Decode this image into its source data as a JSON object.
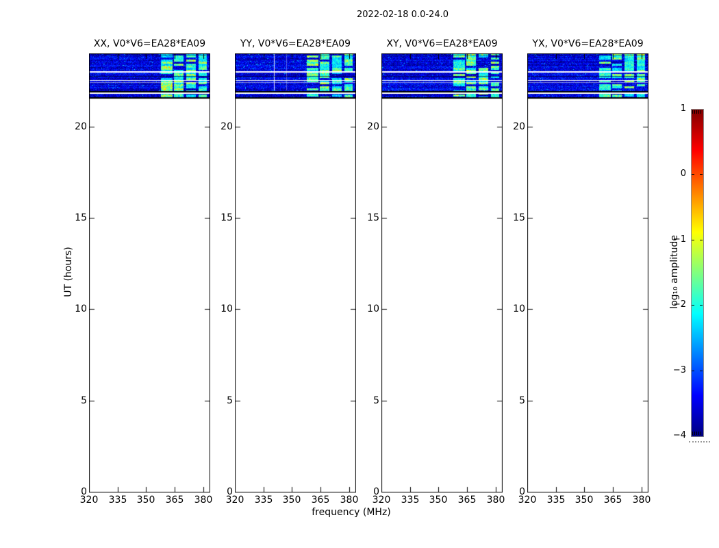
{
  "figure": {
    "title": "2022-02-18 0.0-24.0"
  },
  "axes": {
    "x_label": "frequency (MHz)",
    "y_label": "UT (hours)",
    "x_ticks": [
      320,
      335,
      350,
      365,
      380
    ],
    "y_ticks": [
      0,
      5,
      10,
      15,
      20
    ],
    "x_range_mhz": [
      320,
      383.4
    ],
    "y_range_hours": [
      0,
      24
    ]
  },
  "panels": [
    {
      "corr": "XX",
      "title": "XX, V0*V6=EA28*EA09",
      "vlines_mhz": []
    },
    {
      "corr": "YY",
      "title": "YY, V0*V6=EA28*EA09",
      "vlines_mhz": [
        340.5,
        347.0
      ]
    },
    {
      "corr": "XY",
      "title": "XY, V0*V6=EA28*EA09",
      "vlines_mhz": []
    },
    {
      "corr": "YX",
      "title": "YX, V0*V6=EA28*EA09",
      "vlines_mhz": []
    }
  ],
  "colorbar": {
    "label": "log₁₀ amplitude",
    "tick_labels": [
      "1",
      "0",
      "−1",
      "−2",
      "−3",
      "−4"
    ],
    "tick_values": [
      1,
      0,
      -1,
      -2,
      -3,
      -4
    ],
    "colormap": "jet",
    "gradient_hex": [
      "#000080",
      "#0000ff",
      "#00ffff",
      "#ffff00",
      "#ff0000",
      "#800000"
    ]
  },
  "chart_data": {
    "type": "heatmap",
    "title": "2022-02-18 0.0-24.0",
    "xlabel": "frequency (MHz)",
    "ylabel": "UT (hours)",
    "x_range": [
      320,
      383.4
    ],
    "y_range": [
      0,
      24
    ],
    "color_scale": {
      "label": "log10 amplitude",
      "min": -4,
      "max": 1,
      "colormap": "jet"
    },
    "series": [
      {
        "name": "XX, V0*V6=EA28*EA09"
      },
      {
        "name": "YY, V0*V6=EA28*EA09"
      },
      {
        "name": "XY, V0*V6=EA28*EA09"
      },
      {
        "name": "YX, V0*V6=EA28*EA09"
      }
    ],
    "data_window_ut_hours": [
      21.6,
      24.0
    ],
    "noise_floor_log10_amp": -3.5,
    "rfi_band_mhz": [
      [
        358,
        363.5
      ],
      [
        364.5,
        369.5
      ],
      [
        371,
        376
      ],
      [
        377.5,
        381.5
      ]
    ],
    "rfi_level_log10_amp": -2.0,
    "white_hlines_ut": [
      23.0,
      22.55,
      22.43
    ],
    "dark_hlines_ut": [
      23.93,
      22.77
    ],
    "black_gap_ut": [
      21.94,
      21.87
    ],
    "lower_strip_ut": [
      21.64,
      21.79
    ],
    "bottom_black_line_ut": [
      21.6,
      21.57
    ],
    "yy_white_vlines_mhz": [
      340.5,
      347.0
    ],
    "legend_position": "right colorbar",
    "grid": false
  }
}
